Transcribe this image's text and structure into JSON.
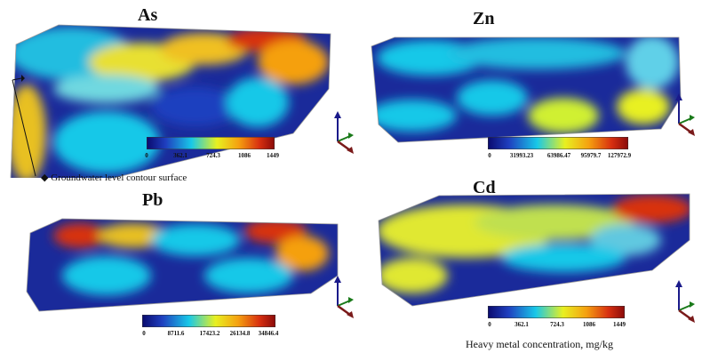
{
  "panels": [
    {
      "name": "as",
      "title": "As",
      "ticks": [
        "0",
        "362.1",
        "724.3",
        "1086",
        "1449"
      ]
    },
    {
      "name": "zn",
      "title": "Zn",
      "ticks": [
        "0",
        "31993.23",
        "63986.47",
        "95979.7",
        "127972.9"
      ]
    },
    {
      "name": "pb",
      "title": "Pb",
      "ticks": [
        "0",
        "8711.6",
        "17423.2",
        "26134.8",
        "34846.4"
      ]
    },
    {
      "name": "cd",
      "title": "Cd",
      "ticks": [
        "0",
        "362.1",
        "724.3",
        "1086",
        "1449"
      ]
    }
  ],
  "annotation": "◆ Groundwater level contour surface",
  "caption": "Heavy metal concentration, mg/kg",
  "colormap": [
    "#0a0a6e",
    "#1f3fbf",
    "#18c8e8",
    "#e8f020",
    "#f5a010",
    "#d83010",
    "#8a0a0a"
  ]
}
